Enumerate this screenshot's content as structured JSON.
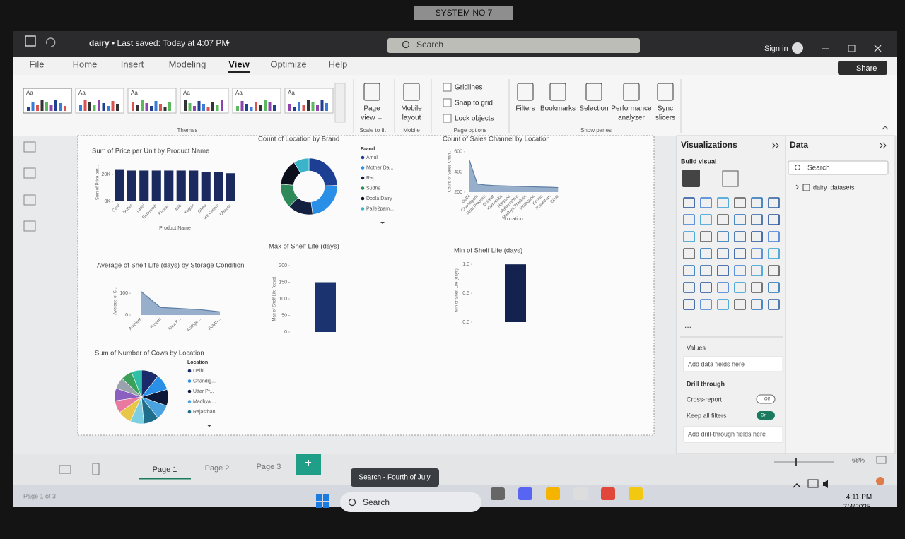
{
  "monitor_label": "SYSTEM NO 7",
  "title_bar": {
    "file_name": "dairy",
    "saved": "• Last saved: Today at 4:07 PM",
    "search": "Search",
    "sign_in": "Sign in"
  },
  "menu": [
    "File",
    "Home",
    "Insert",
    "Modeling",
    "View",
    "Optimize",
    "Help"
  ],
  "active_menu_index": 4,
  "share": "Share",
  "ribbon": {
    "themes": [
      "Aa",
      "Aa",
      "Aa",
      "Aa",
      "Aa",
      "Aa"
    ],
    "buttons": [
      [
        "Page",
        "view ⌄"
      ],
      [
        "Mobile",
        "layout"
      ],
      [
        "Filters"
      ],
      [
        "Bookmarks"
      ],
      [
        "Selection"
      ],
      [
        "Performance",
        "analyzer"
      ],
      [
        "Sync",
        "slicers"
      ]
    ],
    "checkboxes": [
      "Gridlines",
      "Snap to grid",
      "Lock objects"
    ],
    "groups": [
      "Themes",
      "Scale to fit",
      "Mobile",
      "Page options",
      "Show panes"
    ]
  },
  "chart_data": [
    {
      "type": "bar",
      "title": "Sum of Price per Unit by Product Name",
      "x_label": "Product Name",
      "y_label": "Sum of Price per...",
      "categories": [
        "Curd",
        "Butter",
        "Lassi",
        "Buttermilk",
        "Paneer",
        "Milk",
        "Yogurt",
        "Ghee",
        "Ice Cream",
        "Cheese"
      ],
      "values": [
        24000,
        23000,
        23000,
        23000,
        23000,
        23000,
        23000,
        22000,
        22000,
        21000
      ],
      "color": "#1b2a5e",
      "ylim": [
        0,
        28000
      ],
      "yticks": [
        {
          "value": 0,
          "label": "0K"
        },
        {
          "value": 20000,
          "label": "20K"
        }
      ]
    },
    {
      "type": "donut",
      "title": "Count of Location by Brand",
      "legend_title": "Brand",
      "categories": [
        "Amul",
        "Mother Da...",
        "Raj",
        "Sudha",
        "Dodla Dairy",
        "Palle2pam..."
      ],
      "values": [
        1050,
        1010,
        620,
        600,
        640,
        380
      ],
      "colors": [
        "#1c3f94",
        "#2a8fe6",
        "#13203f",
        "#2f8a5a",
        "#0b0f1c",
        "#3bb3c9"
      ]
    },
    {
      "type": "area",
      "title": "Count of Sales Channel by Location",
      "x_label": "Location",
      "y_label": "Count of Sales Chan...",
      "categories": [
        "Delhi",
        "Chandigarh",
        "Uttar Pradesh",
        "Gujarat",
        "Karnataka",
        "Haryana",
        "Maharashtra",
        "Madhya Pradesh",
        "Telangana",
        "Kerala",
        "Rajasthan",
        "Bihar"
      ],
      "values": [
        520,
        280,
        270,
        265,
        262,
        260,
        258,
        255,
        252,
        250,
        248,
        245
      ],
      "color": "#7e9cbf",
      "ylim": [
        200,
        620
      ],
      "yticks": [
        200,
        400,
        600
      ]
    },
    {
      "type": "area",
      "title": "Average of Shelf Life (days) by Storage Condition",
      "y_label": "Average of S...",
      "categories": [
        "Ambient",
        "Frozen",
        "Tetra P...",
        "Refrige...",
        "Polyth..."
      ],
      "values": [
        110,
        35,
        30,
        25,
        15
      ],
      "color": "#7e9cbf",
      "ylim": [
        0,
        130
      ],
      "yticks": [
        0,
        100
      ]
    },
    {
      "type": "bar",
      "title": "Max of Shelf Life (days)",
      "y_label": "Max of Shelf Life (days)",
      "values": [
        150
      ],
      "color": "#1b3470",
      "ylim": [
        0,
        200
      ],
      "yticks": [
        0,
        50,
        100,
        150,
        200
      ]
    },
    {
      "type": "bar",
      "title": "Min of Shelf Life (days)",
      "y_label": "Min of Shelf Life (days)",
      "values": [
        1
      ],
      "color": "#13224f",
      "ylim": [
        0,
        1.1
      ],
      "yticks": [
        {
          "value": 0,
          "label": "0.0"
        },
        {
          "value": 0.5,
          "label": "0.5"
        },
        {
          "value": 1,
          "label": "1.0"
        }
      ]
    },
    {
      "type": "pie",
      "title": "Sum of Number of Cows by Location",
      "legend_title": "Location",
      "categories": [
        "Delhi",
        "Chandig...",
        "Uttar Pr...",
        "Madhya ...",
        "Rajasthan",
        null,
        null,
        null,
        null,
        null,
        null,
        null
      ],
      "values": [
        14000,
        13000,
        13000,
        12000,
        12000,
        11000,
        11000,
        10000,
        10000,
        9000,
        9000,
        8000
      ],
      "colors": [
        "#1b2a6b",
        "#2a8fe6",
        "#0e1838",
        "#4aa3df",
        "#1f6e8c",
        "#7ccfe0",
        "#e8c64a",
        "#e87aa0",
        "#8a5fbf",
        "#9aa3ad",
        "#3aa05a",
        "#2fbfa8"
      ]
    }
  ],
  "visualizations": {
    "title": "Visualizations",
    "build": "Build visual",
    "more": "...",
    "values": "Values",
    "values_hint": "Add data fields here",
    "drill": "Drill through",
    "cross_report": "Cross-report",
    "cross_state": "Off",
    "keep_filters": "Keep all filters",
    "keep_state": "On",
    "drill_hint": "Add drill-through fields here"
  },
  "data_pane": {
    "title": "Data",
    "search": "Search",
    "dataset": "dairy_datasets"
  },
  "pages": [
    "Page 1",
    "Page 2",
    "Page 3"
  ],
  "add_page": "+",
  "zoom": "68%",
  "status": "Page 1 of 3",
  "tooltip": "Search - Fourth of July",
  "taskbar": {
    "search": "Search",
    "time": "4:11 PM",
    "date": "7/4/2025"
  }
}
